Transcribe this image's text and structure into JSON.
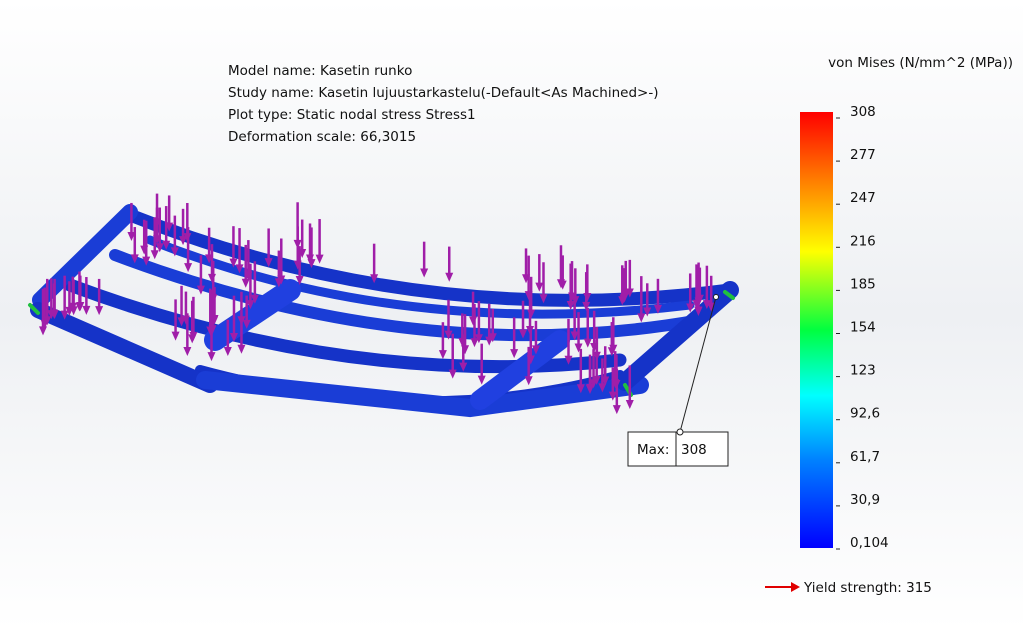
{
  "header": {
    "lines": [
      "Model name: Kasetin runko",
      "Study name: Kasetin lujuustarkastelu(-Default<As Machined>-)",
      "Plot type: Static nodal stress Stress1",
      "Deformation scale: 66,3015"
    ]
  },
  "legend": {
    "title": "von Mises (N/mm^2 (MPa))",
    "labels": [
      "308",
      "277",
      "247",
      "216",
      "185",
      "154",
      "123",
      "92,6",
      "61,7",
      "30,9",
      "0,104"
    ],
    "yield": "Yield strength: 315"
  },
  "probe": {
    "label": "Max:",
    "value": "308"
  }
}
